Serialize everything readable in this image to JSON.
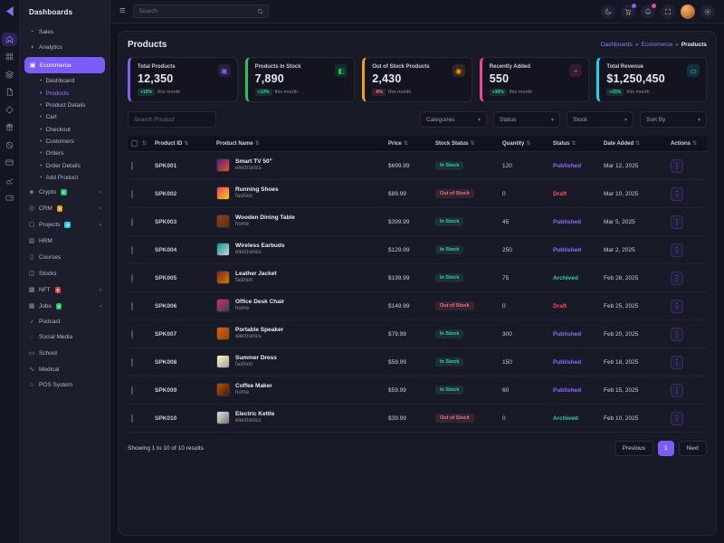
{
  "sidebar": {
    "title": "Dashboards",
    "items": [
      {
        "label": "Sales",
        "icon": "sales-icon",
        "glyph": "◔"
      },
      {
        "label": "Analytics",
        "icon": "analytics-icon",
        "glyph": "◑"
      },
      {
        "label": "Ecommerce",
        "icon": "ecommerce-icon",
        "glyph": "▣",
        "active": true,
        "children": [
          {
            "label": "Dashboard"
          },
          {
            "label": "Products",
            "active": true
          },
          {
            "label": "Product Details"
          },
          {
            "label": "Cart"
          },
          {
            "label": "Checkout"
          },
          {
            "label": "Customers"
          },
          {
            "label": "Orders"
          },
          {
            "label": "Order Details"
          },
          {
            "label": "Add Product"
          }
        ]
      },
      {
        "label": "Crypto",
        "icon": "crypto-icon",
        "glyph": "◈",
        "badge": "8",
        "badge_color": "#22c55e",
        "chevron": true
      },
      {
        "label": "CRM",
        "icon": "crm-icon",
        "glyph": "◎",
        "badge": "5",
        "badge_color": "#f59e0b",
        "chevron": true
      },
      {
        "label": "Projects",
        "icon": "projects-icon",
        "glyph": "▢",
        "badge": "4",
        "badge_color": "#22d3ee",
        "chevron": true
      },
      {
        "label": "HRM",
        "icon": "hrm-icon",
        "glyph": "▥"
      },
      {
        "label": "Courses",
        "icon": "courses-icon",
        "glyph": "▯"
      },
      {
        "label": "Stocks",
        "icon": "stocks-icon",
        "glyph": "◫"
      },
      {
        "label": "NFT",
        "icon": "nft-icon",
        "glyph": "▩",
        "badge": "6",
        "badge_color": "#ef4444",
        "chevron": true
      },
      {
        "label": "Jobs",
        "icon": "jobs-icon",
        "glyph": "▦",
        "badge": "3",
        "badge_color": "#22c55e",
        "chevron": true
      },
      {
        "label": "Podcast",
        "icon": "podcast-icon",
        "glyph": "♪"
      },
      {
        "label": "Social Media",
        "icon": "social-media-icon",
        "glyph": "◌"
      },
      {
        "label": "School",
        "icon": "school-icon",
        "glyph": "▭"
      },
      {
        "label": "Medical",
        "icon": "medical-icon",
        "glyph": "∿"
      },
      {
        "label": "POS System",
        "icon": "pos-icon",
        "glyph": "⌂"
      }
    ]
  },
  "rail": {
    "items": [
      {
        "icon": "home",
        "active": true
      },
      {
        "icon": "grid"
      },
      {
        "icon": "layers"
      },
      {
        "icon": "file"
      },
      {
        "icon": "diamond"
      },
      {
        "icon": "gift"
      },
      {
        "icon": "slash-circle"
      },
      {
        "icon": "credit-card"
      },
      {
        "icon": "chart"
      },
      {
        "icon": "wallet"
      }
    ]
  },
  "topbar": {
    "search_placeholder": "Search",
    "buttons": [
      {
        "name": "theme-toggle-icon",
        "svg": "moon"
      },
      {
        "name": "cart-icon",
        "svg": "cart",
        "dot": "#8b5cf6"
      },
      {
        "name": "notifications-icon",
        "svg": "bell",
        "dot": "#ec4899"
      },
      {
        "name": "fullscreen-icon",
        "svg": "expand"
      },
      {
        "name": "avatar",
        "svg": ""
      },
      {
        "name": "settings-icon",
        "svg": "gear"
      }
    ]
  },
  "page": {
    "title": "Products"
  },
  "breadcrumb": {
    "separator": "»",
    "items": [
      {
        "label": "Dashboards",
        "current": false
      },
      {
        "label": "Ecommerce",
        "current": false
      },
      {
        "label": "Products",
        "current": true
      }
    ]
  },
  "stats": [
    {
      "title": "Total Products",
      "value": "12,350",
      "change": "+15%",
      "negative": false,
      "period": "this month",
      "accent": "#8b5cf6",
      "icon": "package-icon",
      "glyph": "▣"
    },
    {
      "title": "Products In Stock",
      "value": "7,890",
      "change": "+10%",
      "negative": false,
      "period": "this month",
      "accent": "#22c55e",
      "icon": "stock-icon",
      "glyph": "◧"
    },
    {
      "title": "Out of Stock Products",
      "value": "2,430",
      "change": "-8%",
      "negative": true,
      "period": "this month",
      "accent": "#f59e0b",
      "icon": "out-of-stock-icon",
      "glyph": "◉"
    },
    {
      "title": "Recently Added",
      "value": "550",
      "change": "+30%",
      "negative": false,
      "period": "this month",
      "accent": "#ec4899",
      "icon": "recently-added-icon",
      "glyph": "+"
    },
    {
      "title": "Total Revenue",
      "value": "$1,250,450",
      "change": "+25%",
      "negative": false,
      "period": "this month",
      "accent": "#22d3ee",
      "icon": "revenue-icon",
      "glyph": "▭"
    }
  ],
  "filters": {
    "search_placeholder": "Search Product",
    "dropdowns": [
      {
        "label": "Categories"
      },
      {
        "label": "Status"
      },
      {
        "label": "Stock"
      },
      {
        "label": "Sort By"
      }
    ]
  },
  "table": {
    "columns": [
      "Product ID",
      "Product Name",
      "Price",
      "Stock Status",
      "Quantity",
      "Status",
      "Date Added",
      "Actions"
    ],
    "rows": [
      {
        "id": "SPK001",
        "name": "Smart TV 50\"",
        "category": "electronics",
        "price": "$699.99",
        "stock": "In Stock",
        "qty": "120",
        "status": "Published",
        "date": "Mar 12, 2025",
        "thumb": [
          "#4c1d95",
          "#ea580c"
        ]
      },
      {
        "id": "SPK002",
        "name": "Running Shoes",
        "category": "fashion",
        "price": "$89.99",
        "stock": "Out of Stock",
        "qty": "0",
        "status": "Draft",
        "date": "Mar 10, 2025",
        "thumb": [
          "#f43f5e",
          "#facc15"
        ]
      },
      {
        "id": "SPK003",
        "name": "Wooden Dining Table",
        "category": "home",
        "price": "$399.99",
        "stock": "In Stock",
        "qty": "45",
        "status": "Published",
        "date": "Mar 5, 2025",
        "thumb": [
          "#92400e",
          "#57341e"
        ]
      },
      {
        "id": "SPK004",
        "name": "Wireless Earbuds",
        "category": "electronics",
        "price": "$129.99",
        "stock": "In Stock",
        "qty": "250",
        "status": "Published",
        "date": "Mar 2, 2025",
        "thumb": [
          "#0d9488",
          "#cbd5e1"
        ]
      },
      {
        "id": "SPK005",
        "name": "Leather Jacket",
        "category": "fashion",
        "price": "$199.99",
        "stock": "In Stock",
        "qty": "75",
        "status": "Archived",
        "date": "Feb 28, 2025",
        "thumb": [
          "#7c2d12",
          "#d97706"
        ]
      },
      {
        "id": "SPK006",
        "name": "Office Desk Chair",
        "category": "home",
        "price": "$149.99",
        "stock": "Out of Stock",
        "qty": "0",
        "status": "Draft",
        "date": "Feb 25, 2025",
        "thumb": [
          "#db2777",
          "#374151"
        ]
      },
      {
        "id": "SPK007",
        "name": "Portable Speaker",
        "category": "electronics",
        "price": "$79.99",
        "stock": "In Stock",
        "qty": "300",
        "status": "Published",
        "date": "Feb 20, 2025",
        "thumb": [
          "#ea580c",
          "#854d0e"
        ]
      },
      {
        "id": "SPK008",
        "name": "Summer Dress",
        "category": "fashion",
        "price": "$59.99",
        "stock": "In Stock",
        "qty": "150",
        "status": "Published",
        "date": "Feb 18, 2025",
        "thumb": [
          "#fef3c7",
          "#a8a29e"
        ]
      },
      {
        "id": "SPK009",
        "name": "Coffee Maker",
        "category": "home",
        "price": "$59.99",
        "stock": "In Stock",
        "qty": "60",
        "status": "Published",
        "date": "Feb 15, 2025",
        "thumb": [
          "#b45309",
          "#451a03"
        ]
      },
      {
        "id": "SPK010",
        "name": "Electric Kettle",
        "category": "electronics",
        "price": "$39.99",
        "stock": "Out of Stock",
        "qty": "0",
        "status": "Archived",
        "date": "Feb 10, 2025",
        "thumb": [
          "#e7e5e4",
          "#78716c"
        ]
      }
    ]
  },
  "pagination": {
    "summary": "Showing 1 to 10 of 10 results",
    "previous": "Previous",
    "current_page": "1",
    "next": "Next"
  },
  "colors": {
    "accent": "#7c5dfa",
    "published": "#8b5cf6",
    "draft": "#ef4444",
    "archived": "#34d399",
    "in_stock": "#34d399",
    "out_of_stock": "#f87171"
  }
}
